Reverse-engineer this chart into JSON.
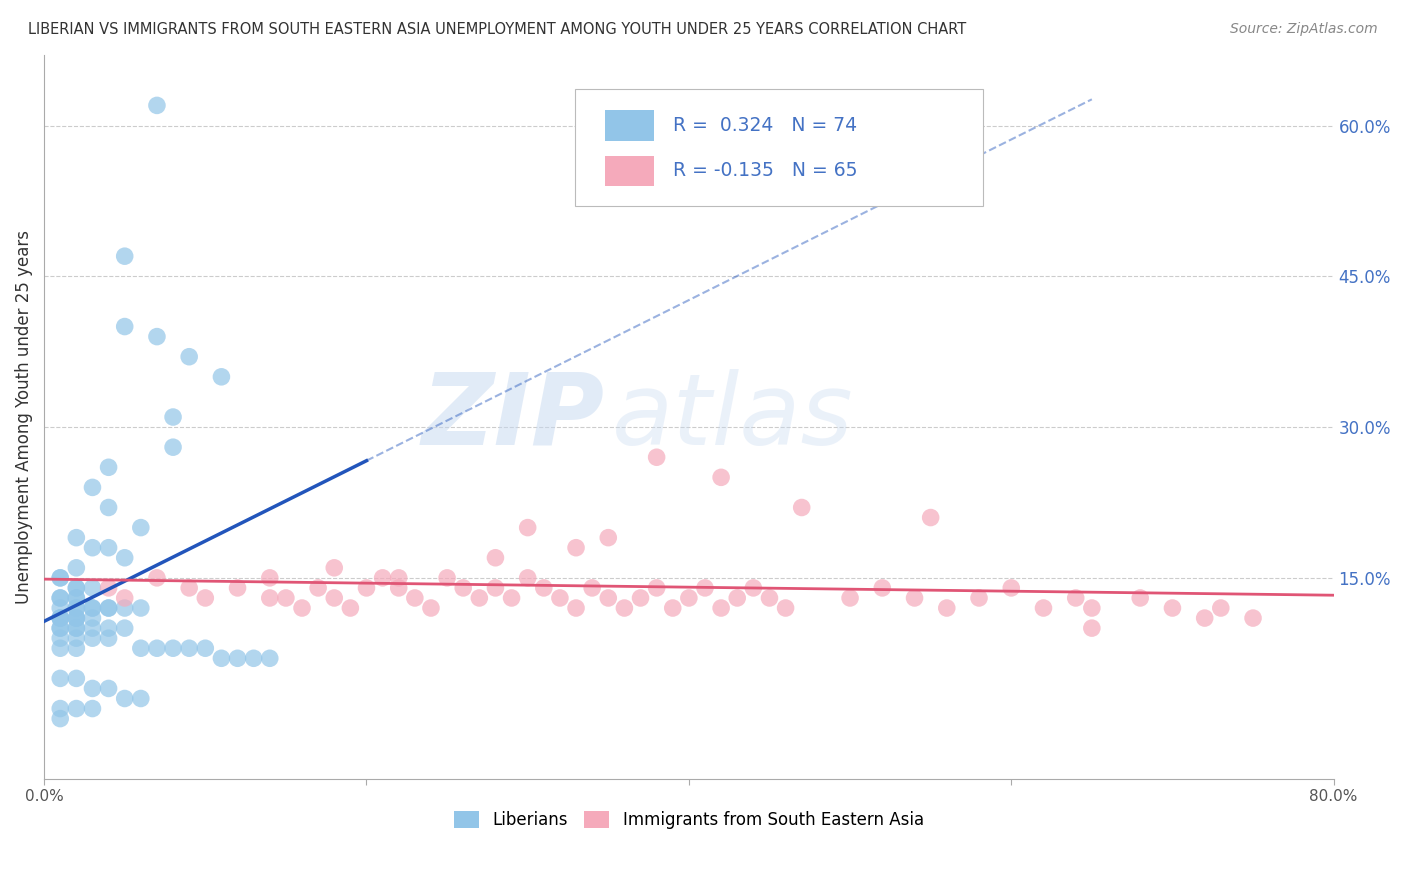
{
  "title": "LIBERIAN VS IMMIGRANTS FROM SOUTH EASTERN ASIA UNEMPLOYMENT AMONG YOUTH UNDER 25 YEARS CORRELATION CHART",
  "source": "Source: ZipAtlas.com",
  "ylabel": "Unemployment Among Youth under 25 years",
  "ytick_labels": [
    "15.0%",
    "30.0%",
    "45.0%",
    "60.0%"
  ],
  "ytick_values": [
    0.15,
    0.3,
    0.45,
    0.6
  ],
  "xlim": [
    0.0,
    0.8
  ],
  "ylim": [
    -0.05,
    0.67
  ],
  "legend_bottom1": "Liberians",
  "legend_bottom2": "Immigrants from South Eastern Asia",
  "blue_color": "#92C5E8",
  "pink_color": "#F5AABB",
  "blue_line_color": "#2255BB",
  "pink_line_color": "#E05575",
  "watermark_zip": "ZIP",
  "watermark_atlas": "atlas",
  "R_blue": 0.324,
  "N_blue": 74,
  "R_pink": -0.135,
  "N_pink": 65,
  "seed": 42,
  "blue_x": [
    0.07,
    0.05,
    0.05,
    0.07,
    0.09,
    0.11,
    0.08,
    0.08,
    0.04,
    0.03,
    0.04,
    0.06,
    0.02,
    0.03,
    0.04,
    0.05,
    0.02,
    0.01,
    0.01,
    0.02,
    0.03,
    0.02,
    0.01,
    0.02,
    0.01,
    0.02,
    0.03,
    0.04,
    0.01,
    0.02,
    0.03,
    0.02,
    0.04,
    0.05,
    0.06,
    0.02,
    0.01,
    0.01,
    0.02,
    0.01,
    0.02,
    0.03,
    0.01,
    0.02,
    0.04,
    0.05,
    0.03,
    0.02,
    0.01,
    0.02,
    0.01,
    0.03,
    0.04,
    0.02,
    0.01,
    0.06,
    0.07,
    0.08,
    0.09,
    0.1,
    0.11,
    0.12,
    0.13,
    0.14,
    0.01,
    0.02,
    0.03,
    0.04,
    0.05,
    0.06,
    0.01,
    0.03,
    0.02,
    0.01
  ],
  "blue_y": [
    0.62,
    0.47,
    0.4,
    0.39,
    0.37,
    0.35,
    0.31,
    0.28,
    0.26,
    0.24,
    0.22,
    0.2,
    0.19,
    0.18,
    0.18,
    0.17,
    0.16,
    0.15,
    0.15,
    0.14,
    0.14,
    0.14,
    0.13,
    0.13,
    0.13,
    0.13,
    0.12,
    0.12,
    0.12,
    0.12,
    0.12,
    0.12,
    0.12,
    0.12,
    0.12,
    0.11,
    0.11,
    0.11,
    0.11,
    0.11,
    0.11,
    0.11,
    0.1,
    0.1,
    0.1,
    0.1,
    0.1,
    0.1,
    0.1,
    0.09,
    0.09,
    0.09,
    0.09,
    0.08,
    0.08,
    0.08,
    0.08,
    0.08,
    0.08,
    0.08,
    0.07,
    0.07,
    0.07,
    0.07,
    0.05,
    0.05,
    0.04,
    0.04,
    0.03,
    0.03,
    0.02,
    0.02,
    0.02,
    0.01
  ],
  "pink_x": [
    0.04,
    0.05,
    0.07,
    0.09,
    0.1,
    0.12,
    0.14,
    0.14,
    0.15,
    0.16,
    0.17,
    0.18,
    0.19,
    0.2,
    0.21,
    0.22,
    0.23,
    0.24,
    0.25,
    0.26,
    0.27,
    0.28,
    0.29,
    0.3,
    0.31,
    0.32,
    0.33,
    0.34,
    0.35,
    0.36,
    0.37,
    0.38,
    0.39,
    0.4,
    0.41,
    0.42,
    0.43,
    0.44,
    0.45,
    0.46,
    0.5,
    0.52,
    0.54,
    0.56,
    0.58,
    0.6,
    0.62,
    0.64,
    0.65,
    0.68,
    0.7,
    0.72,
    0.73,
    0.75,
    0.38,
    0.42,
    0.47,
    0.3,
    0.35,
    0.55,
    0.28,
    0.33,
    0.18,
    0.22,
    0.65
  ],
  "pink_y": [
    0.14,
    0.13,
    0.15,
    0.14,
    0.13,
    0.14,
    0.13,
    0.15,
    0.13,
    0.12,
    0.14,
    0.13,
    0.12,
    0.14,
    0.15,
    0.14,
    0.13,
    0.12,
    0.15,
    0.14,
    0.13,
    0.14,
    0.13,
    0.15,
    0.14,
    0.13,
    0.12,
    0.14,
    0.13,
    0.12,
    0.13,
    0.14,
    0.12,
    0.13,
    0.14,
    0.12,
    0.13,
    0.14,
    0.13,
    0.12,
    0.13,
    0.14,
    0.13,
    0.12,
    0.13,
    0.14,
    0.12,
    0.13,
    0.12,
    0.13,
    0.12,
    0.11,
    0.12,
    0.11,
    0.27,
    0.25,
    0.22,
    0.2,
    0.19,
    0.21,
    0.17,
    0.18,
    0.16,
    0.15,
    0.1
  ]
}
